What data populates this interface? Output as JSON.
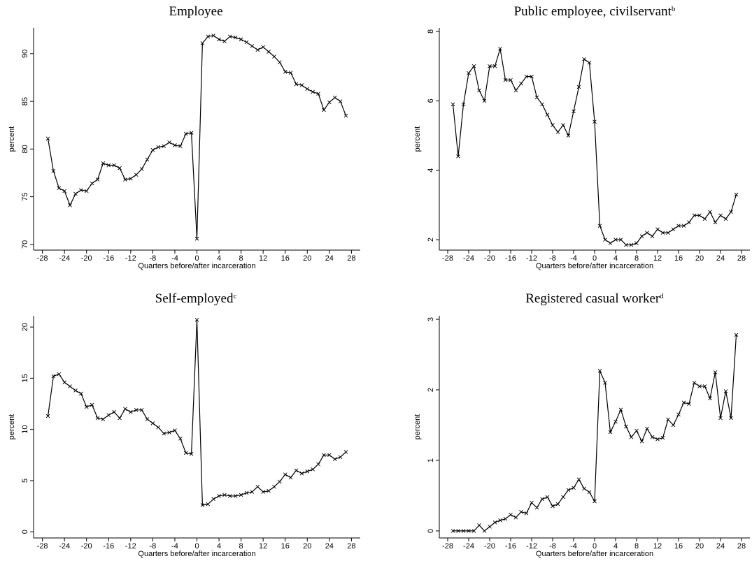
{
  "chart_data": [
    {
      "type": "line",
      "title": "Employee",
      "xlabel": "Quarters before/after incarceration",
      "ylabel": "percent",
      "color": "#000000",
      "x": [
        -27,
        -26,
        -25,
        -24,
        -23,
        -22,
        -21,
        -20,
        -19,
        -18,
        -17,
        -16,
        -15,
        -14,
        -13,
        -12,
        -11,
        -10,
        -9,
        -8,
        -7,
        -6,
        -5,
        -4,
        -3,
        -2,
        -1,
        0,
        1,
        2,
        3,
        4,
        5,
        6,
        7,
        8,
        9,
        10,
        11,
        12,
        13,
        14,
        15,
        16,
        17,
        18,
        19,
        20,
        21,
        22,
        23,
        24,
        25,
        26,
        27
      ],
      "values": [
        81.1,
        77.7,
        75.9,
        75.6,
        74.1,
        75.3,
        75.7,
        75.6,
        76.4,
        76.8,
        78.5,
        78.3,
        78.3,
        78.0,
        76.8,
        76.9,
        77.3,
        77.9,
        78.9,
        79.9,
        80.2,
        80.3,
        80.7,
        80.4,
        80.3,
        81.6,
        81.7,
        70.6,
        91.1,
        91.8,
        91.9,
        91.5,
        91.3,
        91.8,
        91.7,
        91.5,
        91.2,
        90.8,
        90.4,
        90.7,
        90.2,
        89.7,
        89.1,
        88.1,
        88.0,
        86.8,
        86.7,
        86.3,
        86.0,
        85.8,
        84.1,
        84.9,
        85.4,
        85.0,
        83.5
      ],
      "xlim": [
        -29.6,
        29.6
      ],
      "xticks": [
        -28,
        -24,
        -20,
        -16,
        -12,
        -8,
        -4,
        0,
        4,
        8,
        12,
        16,
        20,
        24,
        28
      ],
      "ylim": [
        69.4,
        92.7
      ],
      "yticks": [
        70,
        75,
        80,
        85,
        90
      ]
    },
    {
      "type": "line",
      "title": "Public employee, civilservant",
      "title_superscript": "b",
      "xlabel": "Quarters before/after incarceration",
      "ylabel": "percent",
      "color": "#000000",
      "x": [
        -27,
        -26,
        -25,
        -24,
        -23,
        -22,
        -21,
        -20,
        -19,
        -18,
        -17,
        -16,
        -15,
        -14,
        -13,
        -12,
        -11,
        -10,
        -9,
        -8,
        -7,
        -6,
        -5,
        -4,
        -3,
        -2,
        -1,
        0,
        1,
        2,
        3,
        4,
        5,
        6,
        7,
        8,
        9,
        10,
        11,
        12,
        13,
        14,
        15,
        16,
        17,
        18,
        19,
        20,
        21,
        22,
        23,
        24,
        25,
        26,
        27
      ],
      "values": [
        5.9,
        4.4,
        5.9,
        6.8,
        7.0,
        6.3,
        6.0,
        7.0,
        7.0,
        7.5,
        6.6,
        6.6,
        6.3,
        6.5,
        6.7,
        6.7,
        6.1,
        5.9,
        5.6,
        5.3,
        5.1,
        5.3,
        5.0,
        5.7,
        6.4,
        7.2,
        7.1,
        5.4,
        2.4,
        2.0,
        1.9,
        2.0,
        2.0,
        1.85,
        1.85,
        1.9,
        2.1,
        2.2,
        2.1,
        2.3,
        2.2,
        2.2,
        2.3,
        2.4,
        2.4,
        2.5,
        2.7,
        2.7,
        2.6,
        2.8,
        2.5,
        2.7,
        2.6,
        2.8,
        3.3
      ],
      "xlim": [
        -29.6,
        29.6
      ],
      "xticks": [
        -28,
        -24,
        -20,
        -16,
        -12,
        -8,
        -4,
        0,
        4,
        8,
        12,
        16,
        20,
        24,
        28
      ],
      "ylim": [
        1.7,
        8.1
      ],
      "yticks": [
        2,
        4,
        6,
        8
      ]
    },
    {
      "type": "line",
      "title": "Self-employed",
      "title_superscript": "c",
      "xlabel": "Quarters before/after incarceration",
      "ylabel": "percent",
      "color": "#000000",
      "x": [
        -27,
        -26,
        -25,
        -24,
        -23,
        -22,
        -21,
        -20,
        -19,
        -18,
        -17,
        -16,
        -15,
        -14,
        -13,
        -12,
        -11,
        -10,
        -9,
        -8,
        -7,
        -6,
        -5,
        -4,
        -3,
        -2,
        -1,
        0,
        1,
        2,
        3,
        4,
        5,
        6,
        7,
        8,
        9,
        10,
        11,
        12,
        13,
        14,
        15,
        16,
        17,
        18,
        19,
        20,
        21,
        22,
        23,
        24,
        25,
        26,
        27
      ],
      "values": [
        11.3,
        15.2,
        15.4,
        14.6,
        14.2,
        13.8,
        13.5,
        12.2,
        12.4,
        11.1,
        11.0,
        11.4,
        11.7,
        11.1,
        12.0,
        11.7,
        11.9,
        11.9,
        11.0,
        10.6,
        10.2,
        9.6,
        9.7,
        9.9,
        9.1,
        7.7,
        7.6,
        20.7,
        2.6,
        2.7,
        3.2,
        3.5,
        3.6,
        3.5,
        3.5,
        3.6,
        3.8,
        3.9,
        4.4,
        3.9,
        4.0,
        4.4,
        4.9,
        5.6,
        5.3,
        6.0,
        5.7,
        5.9,
        6.1,
        6.6,
        7.5,
        7.5,
        7.1,
        7.3,
        7.8
      ],
      "xlim": [
        -29.6,
        29.6
      ],
      "xticks": [
        -28,
        -24,
        -20,
        -16,
        -12,
        -8,
        -4,
        0,
        4,
        8,
        12,
        16,
        20,
        24,
        28
      ],
      "ylim": [
        -0.6,
        21.1
      ],
      "yticks": [
        0,
        5,
        10,
        15,
        20
      ]
    },
    {
      "type": "line",
      "title": "Registered casual worker",
      "title_superscript": "d",
      "xlabel": "Quarters before/after incarceration",
      "ylabel": "percent",
      "color": "#000000",
      "x": [
        -27,
        -26,
        -25,
        -24,
        -23,
        -22,
        -21,
        -20,
        -19,
        -18,
        -17,
        -16,
        -15,
        -14,
        -13,
        -12,
        -11,
        -10,
        -9,
        -8,
        -7,
        -6,
        -5,
        -4,
        -3,
        -2,
        -1,
        0,
        1,
        2,
        3,
        4,
        5,
        6,
        7,
        8,
        9,
        10,
        11,
        12,
        13,
        14,
        15,
        16,
        17,
        18,
        19,
        20,
        21,
        22,
        23,
        24,
        25,
        26,
        27
      ],
      "values": [
        0,
        0,
        0,
        0,
        0,
        0.08,
        0,
        0.06,
        0.12,
        0.15,
        0.17,
        0.23,
        0.19,
        0.27,
        0.25,
        0.4,
        0.33,
        0.45,
        0.48,
        0.35,
        0.38,
        0.48,
        0.58,
        0.61,
        0.73,
        0.6,
        0.55,
        0.42,
        2.27,
        2.1,
        1.4,
        1.55,
        1.72,
        1.48,
        1.33,
        1.42,
        1.27,
        1.45,
        1.33,
        1.3,
        1.32,
        1.58,
        1.5,
        1.65,
        1.82,
        1.8,
        2.1,
        2.05,
        2.05,
        1.88,
        2.25,
        1.6,
        1.98,
        1.6,
        2.78
      ],
      "xlim": [
        -29.6,
        29.6
      ],
      "xticks": [
        -28,
        -24,
        -20,
        -16,
        -12,
        -8,
        -4,
        0,
        4,
        8,
        12,
        16,
        20,
        24,
        28
      ],
      "ylim": [
        -0.1,
        3.05
      ],
      "yticks": [
        0,
        1,
        2,
        3
      ]
    }
  ]
}
